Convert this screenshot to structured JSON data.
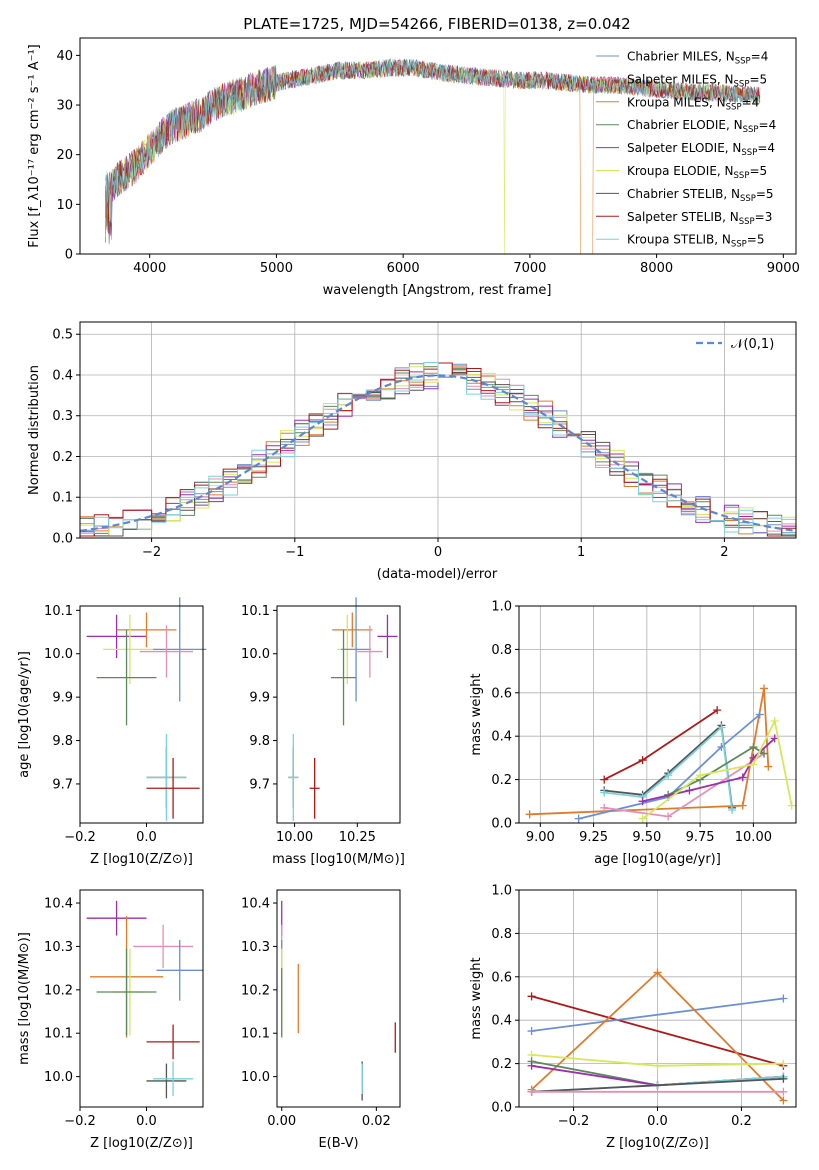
{
  "figure_title": "PLATE=1725, MJD=54266, FIBERID=0138, z=0.042",
  "colors": {
    "Chabrier MILES": "#6b8fd6",
    "Salpeter MILES": "#e68fb4",
    "Kroupa MILES": "#e07b2a",
    "Chabrier ELODIE": "#5a8a5a",
    "Salpeter ELODIE": "#9b2fb0",
    "Kroupa ELODIE": "#d6e85a",
    "Chabrier STELIB": "#555555",
    "Salpeter STELIB": "#b01818",
    "Kroupa STELIB": "#78d2dc"
  },
  "chart_data": [
    {
      "id": "spectrum",
      "type": "line",
      "title": "PLATE=1725, MJD=54266, FIBERID=0138, z=0.042",
      "xlabel": "wavelength [Angstrom, rest frame]",
      "ylabel": "Flux [f_λ 10^-17 erg cm^-2 s^-1 A^-1]",
      "xlim": [
        3450,
        9100
      ],
      "ylim": [
        0,
        43.5
      ],
      "xticks": [
        4000,
        5000,
        6000,
        7000,
        8000,
        9000
      ],
      "yticks": [
        0,
        10,
        20,
        30,
        40
      ],
      "legend_position": "top-right",
      "legend": [
        {
          "model": "Chabrier MILES",
          "n_ssp": "4"
        },
        {
          "model": "Salpeter MILES",
          "n_ssp": "5"
        },
        {
          "model": "Kroupa MILES",
          "n_ssp": "4"
        },
        {
          "model": "Chabrier ELODIE",
          "n_ssp": "4"
        },
        {
          "model": "Salpeter ELODIE",
          "n_ssp": "4"
        },
        {
          "model": "Kroupa ELODIE",
          "n_ssp": "5"
        },
        {
          "model": "Chabrier STELIB",
          "n_ssp": "5"
        },
        {
          "model": "Salpeter STELIB",
          "n_ssp": "3"
        },
        {
          "model": "Kroupa STELIB",
          "n_ssp": "5"
        }
      ],
      "continuum": {
        "x": [
          3650,
          3700,
          3800,
          3900,
          4000,
          4100,
          4200,
          4300,
          4400,
          4500,
          4700,
          4900,
          5100,
          5300,
          5500,
          5700,
          5900,
          6100,
          6300,
          6500,
          6700,
          6900,
          7100,
          7300,
          7500,
          7700,
          7900,
          8100,
          8300,
          8500,
          8700,
          8820
        ],
        "y": [
          13,
          14,
          16,
          18,
          21,
          24,
          26,
          27,
          28,
          30,
          32,
          34,
          35,
          36,
          37,
          37,
          37.5,
          37.5,
          36.5,
          36,
          35.5,
          35,
          35,
          34.5,
          34,
          34,
          33.5,
          33,
          32.5,
          32.5,
          32,
          32
        ]
      },
      "notable_features": [
        {
          "model": "Kroupa MILES",
          "wavelength_range": [
            7400,
            7500
          ],
          "note": "drops to 0"
        },
        {
          "model": "Kroupa ELODIE",
          "wavelength": 6800,
          "note": "drops to 0"
        }
      ]
    },
    {
      "id": "residual_hist",
      "type": "histogram",
      "xlabel": "(data-model)/error",
      "ylabel": "Normed distribution",
      "xlim": [
        -2.5,
        2.5
      ],
      "ylim": [
        0,
        0.53
      ],
      "xticks": [
        -2,
        -1,
        0,
        1,
        2
      ],
      "yticks": [
        0.0,
        0.1,
        0.2,
        0.3,
        0.4,
        0.5
      ],
      "bin_width": 0.1,
      "legend_position": "top-right",
      "legend": [
        "𝒩(0,1)"
      ],
      "reference_curve": "standard normal N(0,1)"
    },
    {
      "id": "age_vs_Z",
      "type": "errorbar",
      "xlabel": "Z [log10(Z/Z⊙)]",
      "ylabel": "age [log10(age/yr)]",
      "xlim": [
        -0.2,
        0.17
      ],
      "ylim": [
        9.61,
        10.11
      ],
      "xticks": [
        -0.2,
        0.0
      ],
      "yticks": [
        9.7,
        9.8,
        9.9,
        10.0,
        10.1
      ],
      "points": [
        {
          "model": "Salpeter ELODIE",
          "x": -0.09,
          "xerr": 0.09,
          "y": 10.04,
          "yerr": 0.05
        },
        {
          "model": "Kroupa MILES",
          "x": 0.0,
          "xerr": 0.09,
          "y": 10.055,
          "yerr": 0.04
        },
        {
          "model": "Kroupa ELODIE",
          "x": -0.05,
          "xerr": 0.08,
          "y": 10.01,
          "yerr": 0.08
        },
        {
          "model": "Chabrier MILES",
          "x": 0.1,
          "xerr": 0.08,
          "y": 10.01,
          "yerr": 0.12
        },
        {
          "model": "Salpeter MILES",
          "x": 0.06,
          "xerr": 0.08,
          "y": 10.005,
          "yerr": 0.06
        },
        {
          "model": "Chabrier ELODIE",
          "x": -0.06,
          "xerr": 0.09,
          "y": 9.945,
          "yerr": 0.11
        },
        {
          "model": "Chabrier STELIB",
          "x": 0.06,
          "xerr": 0.06,
          "y": 9.715,
          "yerr": 0.07
        },
        {
          "model": "Kroupa STELIB",
          "x": 0.06,
          "xerr": 0.06,
          "y": 9.715,
          "yerr": 0.1
        },
        {
          "model": "Salpeter STELIB",
          "x": 0.08,
          "xerr": 0.08,
          "y": 9.69,
          "yerr": 0.07
        }
      ]
    },
    {
      "id": "age_vs_mass",
      "type": "errorbar",
      "xlabel": "mass [log10(M/M⊙)]",
      "ylabel": "",
      "xlim": [
        9.93,
        10.42
      ],
      "ylim": [
        9.61,
        10.11
      ],
      "xticks": [
        10.0,
        10.25
      ],
      "yticks": [
        9.7,
        9.8,
        9.9,
        10.0,
        10.1
      ],
      "points": [
        {
          "model": "Salpeter ELODIE",
          "x": 10.37,
          "xerr": 0.04,
          "y": 10.04,
          "yerr": 0.05
        },
        {
          "model": "Kroupa MILES",
          "x": 10.23,
          "xerr": 0.08,
          "y": 10.055,
          "yerr": 0.04
        },
        {
          "model": "Kroupa ELODIE",
          "x": 10.21,
          "xerr": 0.04,
          "y": 10.01,
          "yerr": 0.08
        },
        {
          "model": "Chabrier MILES",
          "x": 10.245,
          "xerr": 0.06,
          "y": 10.01,
          "yerr": 0.12
        },
        {
          "model": "Salpeter MILES",
          "x": 10.3,
          "xerr": 0.05,
          "y": 10.005,
          "yerr": 0.06
        },
        {
          "model": "Chabrier ELODIE",
          "x": 10.195,
          "xerr": 0.05,
          "y": 9.945,
          "yerr": 0.11
        },
        {
          "model": "Chabrier STELIB",
          "x": 9.995,
          "xerr": 0.02,
          "y": 9.715,
          "yerr": 0.07
        },
        {
          "model": "Kroupa STELIB",
          "x": 9.995,
          "xerr": 0.02,
          "y": 9.715,
          "yerr": 0.1
        },
        {
          "model": "Salpeter STELIB",
          "x": 10.08,
          "xerr": 0.02,
          "y": 9.69,
          "yerr": 0.07
        }
      ]
    },
    {
      "id": "mass_weight_vs_age",
      "type": "line",
      "xlabel": "age [log10(age/yr)]",
      "ylabel": "mass weight",
      "xlim": [
        8.9,
        10.2
      ],
      "ylim": [
        0,
        1.0
      ],
      "xticks": [
        9.0,
        9.25,
        9.5,
        9.75,
        10.0
      ],
      "yticks": [
        0.0,
        0.2,
        0.4,
        0.6,
        0.8,
        1.0
      ],
      "grid": true,
      "series": [
        {
          "model": "Kroupa MILES",
          "x": [
            8.95,
            9.95,
            10.05,
            10.07
          ],
          "y": [
            0.04,
            0.08,
            0.62,
            0.26
          ]
        },
        {
          "model": "Chabrier MILES",
          "x": [
            9.18,
            9.6,
            9.85,
            10.03
          ],
          "y": [
            0.02,
            0.12,
            0.35,
            0.5
          ]
        },
        {
          "model": "Salpeter MILES",
          "x": [
            9.3,
            9.6,
            10.05
          ],
          "y": [
            0.07,
            0.03,
            0.32
          ]
        },
        {
          "model": "Salpeter STELIB",
          "x": [
            9.3,
            9.48,
            9.83
          ],
          "y": [
            0.2,
            0.29,
            0.52
          ]
        },
        {
          "model": "Chabrier STELIB",
          "x": [
            9.3,
            9.48,
            9.6,
            9.85,
            9.9
          ],
          "y": [
            0.15,
            0.13,
            0.23,
            0.45,
            0.07
          ]
        },
        {
          "model": "Kroupa STELIB",
          "x": [
            9.3,
            9.48,
            9.6,
            9.85,
            9.9
          ],
          "y": [
            0.14,
            0.12,
            0.22,
            0.44,
            0.06
          ]
        },
        {
          "model": "Chabrier ELODIE",
          "x": [
            9.6,
            9.75,
            10.0,
            10.05
          ],
          "y": [
            0.13,
            0.2,
            0.35,
            0.32
          ]
        },
        {
          "model": "Salpeter ELODIE",
          "x": [
            9.48,
            9.7,
            9.95,
            10.0,
            10.1
          ],
          "y": [
            0.1,
            0.15,
            0.21,
            0.3,
            0.39
          ]
        },
        {
          "model": "Kroupa ELODIE",
          "x": [
            9.48,
            9.75,
            10.0,
            10.1,
            10.18
          ],
          "y": [
            0.02,
            0.22,
            0.27,
            0.47,
            0.08
          ]
        }
      ]
    },
    {
      "id": "mass_vs_Z",
      "type": "errorbar",
      "xlabel": "Z [log10(Z/Z⊙)]",
      "ylabel": "mass [log10(M/M⊙)]",
      "xlim": [
        -0.2,
        0.17
      ],
      "ylim": [
        9.93,
        10.43
      ],
      "xticks": [
        -0.2,
        0.0
      ],
      "yticks": [
        10.0,
        10.1,
        10.2,
        10.3,
        10.4
      ],
      "points": [
        {
          "model": "Salpeter ELODIE",
          "x": -0.09,
          "xerr": 0.09,
          "y": 10.365,
          "yerr": 0.04
        },
        {
          "model": "Salpeter MILES",
          "x": 0.05,
          "xerr": 0.09,
          "y": 10.3,
          "yerr": 0.05
        },
        {
          "model": "Chabrier MILES",
          "x": 0.1,
          "xerr": 0.07,
          "y": 10.245,
          "yerr": 0.07
        },
        {
          "model": "Kroupa MILES",
          "x": -0.06,
          "xerr": 0.11,
          "y": 10.23,
          "yerr": 0.14
        },
        {
          "model": "Kroupa ELODIE",
          "x": -0.05,
          "xerr": 0.05,
          "y": 10.195,
          "yerr": 0.1
        },
        {
          "model": "Chabrier ELODIE",
          "x": -0.06,
          "xerr": 0.09,
          "y": 10.195,
          "yerr": 0.1
        },
        {
          "model": "Salpeter STELIB",
          "x": 0.08,
          "xerr": 0.08,
          "y": 10.08,
          "yerr": 0.04
        },
        {
          "model": "Chabrier STELIB",
          "x": 0.06,
          "xerr": 0.06,
          "y": 9.99,
          "yerr": 0.04
        },
        {
          "model": "Kroupa STELIB",
          "x": 0.08,
          "xerr": 0.06,
          "y": 9.995,
          "yerr": 0.04
        }
      ]
    },
    {
      "id": "mass_vs_ebv",
      "type": "errorbar",
      "xlabel": "E(B-V)",
      "ylabel": "",
      "xlim": [
        -0.001,
        0.025
      ],
      "ylim": [
        9.93,
        10.43
      ],
      "xticks": [
        0.0,
        0.02
      ],
      "yticks": [
        10.0,
        10.1,
        10.2,
        10.3,
        10.4
      ],
      "points": [
        {
          "model": "Salpeter ELODIE",
          "x": 0.0,
          "xerr": 0,
          "y": 10.365,
          "yerr": 0.04
        },
        {
          "model": "Salpeter MILES",
          "x": 0.0,
          "xerr": 0,
          "y": 10.3,
          "yerr": 0.05
        },
        {
          "model": "Chabrier MILES",
          "x": 0.0,
          "xerr": 0,
          "y": 10.245,
          "yerr": 0.07
        },
        {
          "model": "Kroupa MILES",
          "x": 0.0035,
          "xerr": 0,
          "y": 10.18,
          "yerr": 0.08
        },
        {
          "model": "Kroupa ELODIE",
          "x": 0.0,
          "xerr": 0,
          "y": 10.195,
          "yerr": 0.1
        },
        {
          "model": "Chabrier ELODIE",
          "x": 0.0,
          "xerr": 0,
          "y": 10.17,
          "yerr": 0.08
        },
        {
          "model": "Salpeter STELIB",
          "x": 0.024,
          "xerr": 0,
          "y": 10.09,
          "yerr": 0.035
        },
        {
          "model": "Chabrier STELIB",
          "x": 0.017,
          "xerr": 0,
          "y": 9.99,
          "yerr": 0.045
        },
        {
          "model": "Kroupa STELIB",
          "x": 0.017,
          "xerr": 0,
          "y": 9.995,
          "yerr": 0.035
        }
      ]
    },
    {
      "id": "mass_weight_vs_Z",
      "type": "line",
      "xlabel": "Z [log10(Z/Z⊙)]",
      "ylabel": "mass weight",
      "xlim": [
        -0.33,
        0.33
      ],
      "ylim": [
        0,
        1.0
      ],
      "xticks": [
        -0.2,
        0.0,
        0.2
      ],
      "yticks": [
        0.0,
        0.2,
        0.4,
        0.6,
        0.8,
        1.0
      ],
      "grid": true,
      "series": [
        {
          "model": "Salpeter STELIB",
          "x": [
            -0.3,
            0.3
          ],
          "y": [
            0.51,
            0.19
          ]
        },
        {
          "model": "Chabrier MILES",
          "x": [
            -0.3,
            0.3
          ],
          "y": [
            0.35,
            0.5
          ]
        },
        {
          "model": "Kroupa MILES",
          "x": [
            -0.3,
            0.0,
            0.3
          ],
          "y": [
            0.08,
            0.62,
            0.03
          ]
        },
        {
          "model": "Kroupa ELODIE",
          "x": [
            -0.3,
            0.0,
            0.3
          ],
          "y": [
            0.24,
            0.19,
            0.2
          ]
        },
        {
          "model": "Chabrier ELODIE",
          "x": [
            -0.3,
            0.0,
            0.3
          ],
          "y": [
            0.21,
            0.1,
            0.14
          ]
        },
        {
          "model": "Salpeter ELODIE",
          "x": [
            -0.3,
            0.0,
            0.3
          ],
          "y": [
            0.19,
            0.1,
            0.14
          ]
        },
        {
          "model": "Kroupa STELIB",
          "x": [
            -0.3,
            0.0,
            0.3
          ],
          "y": [
            0.07,
            0.1,
            0.14
          ]
        },
        {
          "model": "Chabrier STELIB",
          "x": [
            -0.3,
            0.3
          ],
          "y": [
            0.07,
            0.13
          ]
        },
        {
          "model": "Salpeter MILES",
          "x": [
            -0.3,
            0.3
          ],
          "y": [
            0.07,
            0.07
          ]
        }
      ]
    }
  ]
}
